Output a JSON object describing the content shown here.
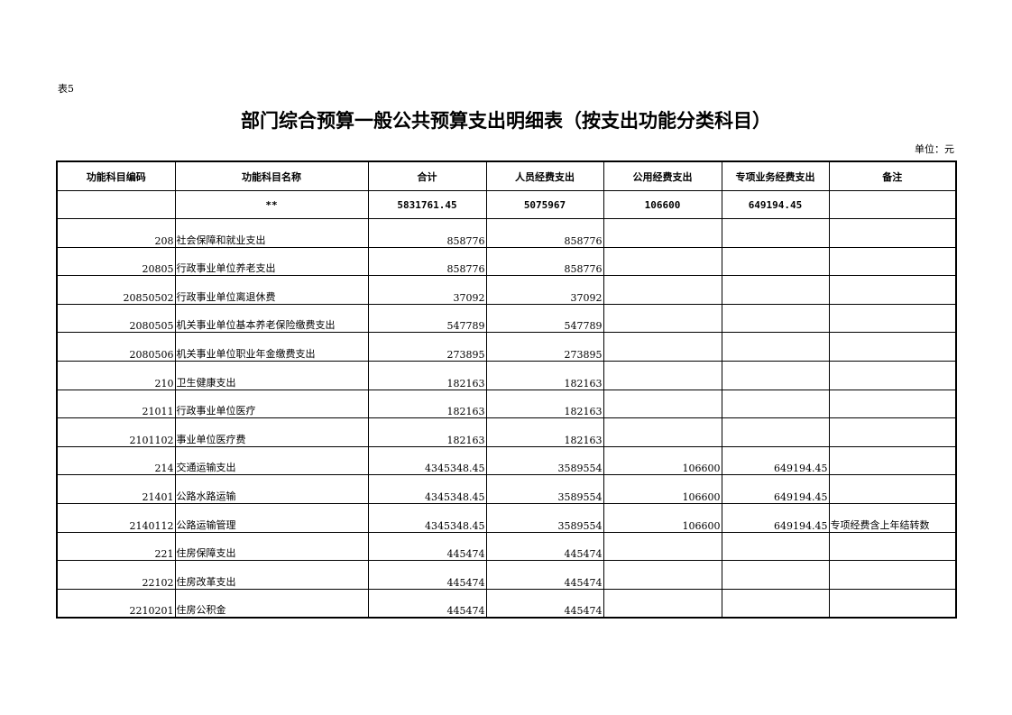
{
  "doc": {
    "label": "表5",
    "title": "部门综合预算一般公共预算支出明细表（按支出功能分类科目）",
    "unit": "单位：元"
  },
  "table": {
    "headers": [
      "功能科目编码",
      "功能科目名称",
      "合计",
      "人员经费支出",
      "公用经费支出",
      "专项业务经费支出",
      "备注"
    ],
    "total": {
      "code": "",
      "name": "**",
      "total": "5831761.45",
      "personnel": "5075967",
      "public": "106600",
      "special": "649194.45",
      "note": ""
    },
    "rows": [
      {
        "code": "208",
        "name": "社会保障和就业支出",
        "total": "858776",
        "personnel": "858776",
        "public": "",
        "special": "",
        "note": ""
      },
      {
        "code": "20805",
        "name": "行政事业单位养老支出",
        "total": "858776",
        "personnel": "858776",
        "public": "",
        "special": "",
        "note": ""
      },
      {
        "code": "20850502",
        "name": "行政事业单位离退休费",
        "total": "37092",
        "personnel": "37092",
        "public": "",
        "special": "",
        "note": ""
      },
      {
        "code": "2080505",
        "name": "机关事业单位基本养老保险缴费支出",
        "total": "547789",
        "personnel": "547789",
        "public": "",
        "special": "",
        "note": ""
      },
      {
        "code": "2080506",
        "name": "机关事业单位职业年金缴费支出",
        "total": "273895",
        "personnel": "273895",
        "public": "",
        "special": "",
        "note": ""
      },
      {
        "code": "210",
        "name": "卫生健康支出",
        "total": "182163",
        "personnel": "182163",
        "public": "",
        "special": "",
        "note": ""
      },
      {
        "code": "21011",
        "name": "行政事业单位医疗",
        "total": "182163",
        "personnel": "182163",
        "public": "",
        "special": "",
        "note": ""
      },
      {
        "code": "2101102",
        "name": "事业单位医疗费",
        "total": "182163",
        "personnel": "182163",
        "public": "",
        "special": "",
        "note": ""
      },
      {
        "code": "214",
        "name": "交通运输支出",
        "total": "4345348.45",
        "personnel": "3589554",
        "public": "106600",
        "special": "649194.45",
        "note": ""
      },
      {
        "code": "21401",
        "name": "公路水路运输",
        "total": "4345348.45",
        "personnel": "3589554",
        "public": "106600",
        "special": "649194.45",
        "note": ""
      },
      {
        "code": "2140112",
        "name": "公路运输管理",
        "total": "4345348.45",
        "personnel": "3589554",
        "public": "106600",
        "special": "649194.45",
        "note": "专项经费含上年结转数"
      },
      {
        "code": "221",
        "name": "住房保障支出",
        "total": "445474",
        "personnel": "445474",
        "public": "",
        "special": "",
        "note": ""
      },
      {
        "code": "22102",
        "name": "住房改革支出",
        "total": "445474",
        "personnel": "445474",
        "public": "",
        "special": "",
        "note": ""
      },
      {
        "code": "2210201",
        "name": "住房公积金",
        "total": "445474",
        "personnel": "445474",
        "public": "",
        "special": "",
        "note": ""
      }
    ]
  }
}
